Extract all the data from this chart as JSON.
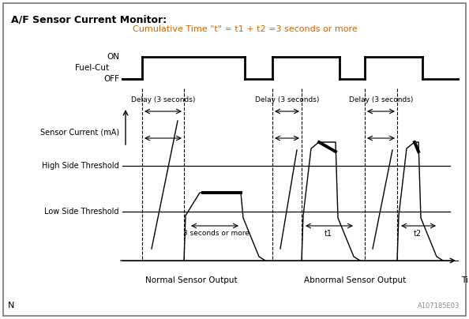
{
  "title": "A/F Sensor Current Monitor:",
  "subtitle": "Cumulative Time \"t\" = t1 + t2 =3 seconds or more",
  "subtitle_color": "#cc6600",
  "bg_color": "#ffffff",
  "border_color": "#888888",
  "label_fuelcut": "Fuel-Cut",
  "label_on": "ON",
  "label_off": "OFF",
  "label_sensor": "Sensor Current (mA)",
  "label_high": "High Side Threshold",
  "label_low": "Low Side Threshold",
  "label_normal": "Normal Sensor Output",
  "label_abnormal": "Abnormal Sensor Output",
  "label_time": "Time",
  "label_N": "N",
  "label_code": "A107185E03",
  "delay_label": "Delay (3 seconds)",
  "three_sec_label": "3 seconds or more",
  "t1_label": "t1",
  "t2_label": "t2"
}
